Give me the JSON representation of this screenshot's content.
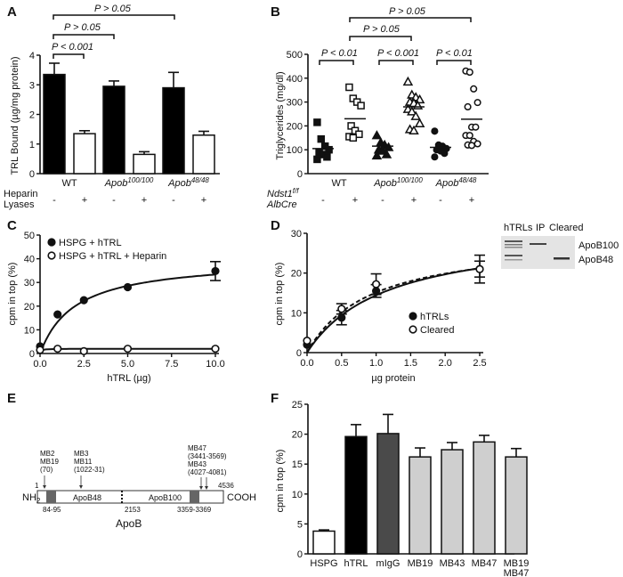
{
  "panels": {
    "A": {
      "letter": "A",
      "p_labels": [
        "P > 0.05",
        "P > 0.05",
        "P < 0.001"
      ],
      "row_labels": [
        "Heparin",
        "Lyases"
      ],
      "signs": [
        "-",
        "+",
        "-",
        "+",
        "-",
        "+"
      ]
    },
    "B": {
      "letter": "B",
      "p_labels": [
        "P > 0.05",
        "P > 0.05",
        "P < 0.01",
        "P < 0.001",
        "P < 0.01"
      ],
      "row_labels": [
        "Ndst1f/f",
        "AlbCre"
      ],
      "signs": [
        "-",
        "+",
        "-",
        "+",
        "-",
        "+"
      ]
    },
    "C": {
      "letter": "C"
    },
    "D": {
      "letter": "D",
      "gel": {
        "lanes": [
          "hTRLs",
          "IP",
          "Cleared"
        ],
        "bands": [
          "ApoB100",
          "ApoB48"
        ]
      }
    },
    "E": {
      "letter": "E",
      "title": "ApoB",
      "n_term": "NH",
      "n_sub": "2",
      "c_term": "COOH",
      "start": "1",
      "end": "4536",
      "seg1": "ApoB48",
      "seg2": "ApoB100",
      "split": "2153",
      "region1": "84-95",
      "region2": "3359-3369",
      "epitopes": [
        {
          "lines": [
            "MB2",
            "MB19",
            "(70)"
          ]
        },
        {
          "lines": [
            "MB3",
            "MB11",
            "(1022-31)"
          ]
        },
        {
          "lines": [
            "MB47",
            "(3441-3569)",
            "MB43",
            "(4027-4081)"
          ]
        }
      ]
    },
    "F": {
      "letter": "F"
    }
  },
  "chart_data": [
    {
      "panel": "A",
      "type": "bar",
      "categories": [
        "WT",
        "Apob100/100",
        "Apob48/48"
      ],
      "category_display": [
        {
          "base": "WT",
          "sup": ""
        },
        {
          "base": "Apob",
          "sup": "100/100"
        },
        {
          "base": "Apob",
          "sup": "48/48"
        }
      ],
      "series": [
        {
          "name": "Heparin Lyases -",
          "color": "#000000",
          "values": [
            3.35,
            2.95,
            2.9
          ],
          "errors": [
            0.38,
            0.18,
            0.52
          ]
        },
        {
          "name": "Heparin Lyases +",
          "color": "#ffffff",
          "values": [
            1.35,
            0.65,
            1.3
          ],
          "errors": [
            0.1,
            0.09,
            0.13
          ]
        }
      ],
      "ylabel": "TRL Bound (µg/mg protein)",
      "ylim": [
        0,
        4
      ],
      "yticks": [
        "0",
        "1",
        "2",
        "3",
        "4"
      ]
    },
    {
      "panel": "B",
      "type": "scatter",
      "categories": [
        "WT",
        "Apob100/100",
        "Apob48/48"
      ],
      "category_display": [
        {
          "base": "WT",
          "sup": ""
        },
        {
          "base": "Apob",
          "sup": "100/100"
        },
        {
          "base": "Apob",
          "sup": "48/48"
        }
      ],
      "groups": [
        {
          "name": "WT -",
          "marker": "square-filled",
          "values": [
            215,
            145,
            115,
            100,
            90,
            80,
            70,
            60
          ],
          "mean": 105
        },
        {
          "name": "WT +",
          "marker": "square-open",
          "values": [
            362,
            315,
            300,
            285,
            200,
            180,
            165,
            155,
            150
          ],
          "mean": 230
        },
        {
          "name": "Apob100/100 -",
          "marker": "triangle-filled",
          "values": [
            160,
            130,
            120,
            110,
            100,
            95,
            80,
            75
          ],
          "mean": 115
        },
        {
          "name": "Apob100/100 +",
          "marker": "triangle-open",
          "values": [
            385,
            330,
            320,
            310,
            300,
            295,
            285,
            270,
            260,
            240,
            210,
            185,
            180
          ],
          "mean": 280
        },
        {
          "name": "Apob48/48 -",
          "marker": "circle-filled",
          "values": [
            178,
            120,
            115,
            105,
            100,
            95,
            85,
            70
          ],
          "mean": 110
        },
        {
          "name": "Apob48/48 +",
          "marker": "circle-open",
          "values": [
            430,
            425,
            355,
            298,
            280,
            195,
            195,
            160,
            160,
            135,
            125,
            120,
            118
          ],
          "mean": 228
        }
      ],
      "ylabel": "Triglycerides (mg/dl)",
      "ylim": [
        0,
        500
      ],
      "yticks": [
        "0",
        "100",
        "200",
        "300",
        "400",
        "500"
      ]
    },
    {
      "panel": "C",
      "type": "line",
      "series": [
        {
          "name": "HSPG + hTRL",
          "marker": "filled",
          "x": [
            0,
            1,
            2.5,
            5,
            10
          ],
          "y": [
            3,
            16.5,
            22.5,
            28,
            34.8
          ],
          "errors": [
            0,
            0,
            0,
            0,
            4
          ],
          "fit": {
            "bmax": 40,
            "kd": 2.0
          }
        },
        {
          "name": "HSPG + hTRL + Heparin",
          "marker": "open",
          "x": [
            0,
            1,
            2.5,
            5,
            10
          ],
          "y": [
            1.5,
            2,
            1,
            2,
            2
          ],
          "errors": [
            0,
            0,
            0,
            0,
            0
          ],
          "fit": {
            "bmax": 2,
            "kd": 0.05
          }
        }
      ],
      "xlabel": "hTRL (µg)",
      "ylabel": "cpm in top (%)",
      "xlim": [
        0,
        10
      ],
      "ylim": [
        0,
        50
      ],
      "xticks": [
        "0.0",
        "2.5",
        "5.0",
        "7.5",
        "10.0"
      ],
      "yticks": [
        "0",
        "10",
        "20",
        "30",
        "40",
        "50"
      ],
      "legend": "top-left"
    },
    {
      "panel": "D",
      "type": "line",
      "series": [
        {
          "name": "hTRLs",
          "marker": "filled",
          "dash": false,
          "x": [
            0,
            0.5,
            1,
            2.5
          ],
          "y": [
            2,
            8.8,
            15.5,
            21
          ],
          "errors": [
            0,
            1.8,
            1.6,
            3.5
          ],
          "fit": {
            "bmax": 31,
            "kd": 1.15
          }
        },
        {
          "name": "Cleared",
          "marker": "open",
          "dash": true,
          "x": [
            0,
            0.5,
            1,
            2.5
          ],
          "y": [
            3,
            11,
            17.2,
            21
          ],
          "errors": [
            0,
            1.3,
            2.6,
            2
          ],
          "fit": {
            "bmax": 29,
            "kd": 0.92
          }
        }
      ],
      "xlabel": "µg protein",
      "ylabel": "cpm in top (%)",
      "xlim": [
        0,
        2.5
      ],
      "ylim": [
        0,
        30
      ],
      "xticks": [
        "0.0",
        "0.5",
        "1.0",
        "1.5",
        "2.0",
        "2.5"
      ],
      "yticks": [
        "0",
        "10",
        "20",
        "30"
      ],
      "legend": "center-right"
    },
    {
      "panel": "F",
      "type": "bar",
      "categories": [
        "HSPG",
        "hTRL",
        "mIgG",
        "MB19",
        "MB43",
        "MB47",
        "MB19 MB47"
      ],
      "category_lines": [
        [
          "HSPG"
        ],
        [
          "hTRL"
        ],
        [
          "mIgG"
        ],
        [
          "MB19"
        ],
        [
          "MB43"
        ],
        [
          "MB47"
        ],
        [
          "MB19",
          "MB47"
        ]
      ],
      "values": [
        3.8,
        19.6,
        20.1,
        16.2,
        17.4,
        18.7,
        16.2
      ],
      "errors": [
        0.2,
        2.0,
        3.2,
        1.5,
        1.2,
        1.1,
        1.4
      ],
      "colors": [
        "#ffffff",
        "#000000",
        "#4a4a4a",
        "#cfcfcf",
        "#cfcfcf",
        "#cfcfcf",
        "#cfcfcf"
      ],
      "ylabel": "cpm in top (%)",
      "ylim": [
        0,
        25
      ],
      "yticks": [
        "0",
        "5",
        "10",
        "15",
        "20",
        "25"
      ]
    }
  ]
}
